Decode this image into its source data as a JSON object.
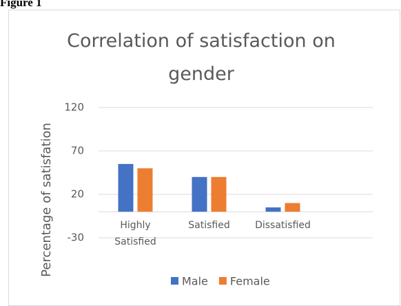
{
  "figure_label": "Figure 1",
  "chart_data": {
    "type": "bar",
    "title": "Correlation of satisfaction on gender",
    "y_label": "Percentage of satisfation",
    "categories": [
      "Highly Satisfied",
      "Satisfied",
      "Dissatisfied",
      null
    ],
    "series": [
      {
        "name": "Male",
        "color": "#4472c4",
        "values": [
          55,
          40,
          5,
          null
        ]
      },
      {
        "name": "Female",
        "color": "#ed7d31",
        "values": [
          50,
          40,
          10,
          null
        ]
      }
    ],
    "ylim": [
      -30,
      120
    ],
    "yticks": [
      -30,
      20,
      70,
      120
    ],
    "grid": true,
    "legend": "bottom"
  }
}
